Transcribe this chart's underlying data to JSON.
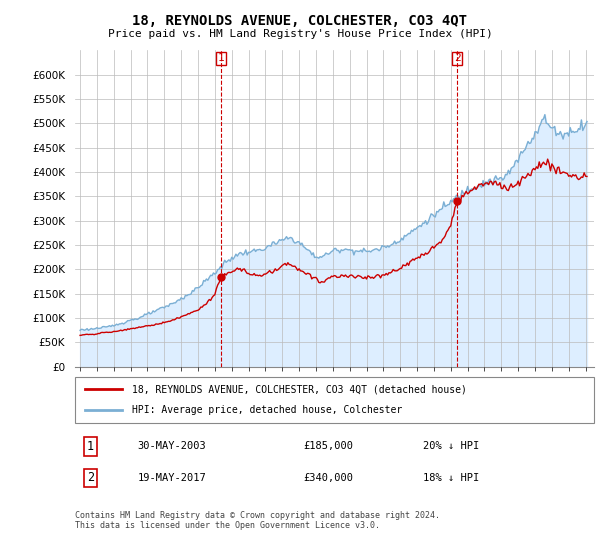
{
  "title": "18, REYNOLDS AVENUE, COLCHESTER, CO3 4QT",
  "subtitle": "Price paid vs. HM Land Registry's House Price Index (HPI)",
  "legend_line1": "18, REYNOLDS AVENUE, COLCHESTER, CO3 4QT (detached house)",
  "legend_line2": "HPI: Average price, detached house, Colchester",
  "sale1_label": "1",
  "sale1_date": "30-MAY-2003",
  "sale1_price": "£185,000",
  "sale1_hpi": "20% ↓ HPI",
  "sale2_label": "2",
  "sale2_date": "19-MAY-2017",
  "sale2_price": "£340,000",
  "sale2_hpi": "18% ↓ HPI",
  "footer": "Contains HM Land Registry data © Crown copyright and database right 2024.\nThis data is licensed under the Open Government Licence v3.0.",
  "red_color": "#cc0000",
  "blue_color": "#7bafd4",
  "fill_color": "#ddeeff",
  "ylim": [
    0,
    650000
  ],
  "yticks": [
    0,
    50000,
    100000,
    150000,
    200000,
    250000,
    300000,
    350000,
    400000,
    450000,
    500000,
    550000,
    600000
  ],
  "sale1_x": 2003.38,
  "sale1_y": 185000,
  "sale2_x": 2017.38,
  "sale2_y": 340000,
  "xlim_left": 1994.7,
  "xlim_right": 2025.5
}
